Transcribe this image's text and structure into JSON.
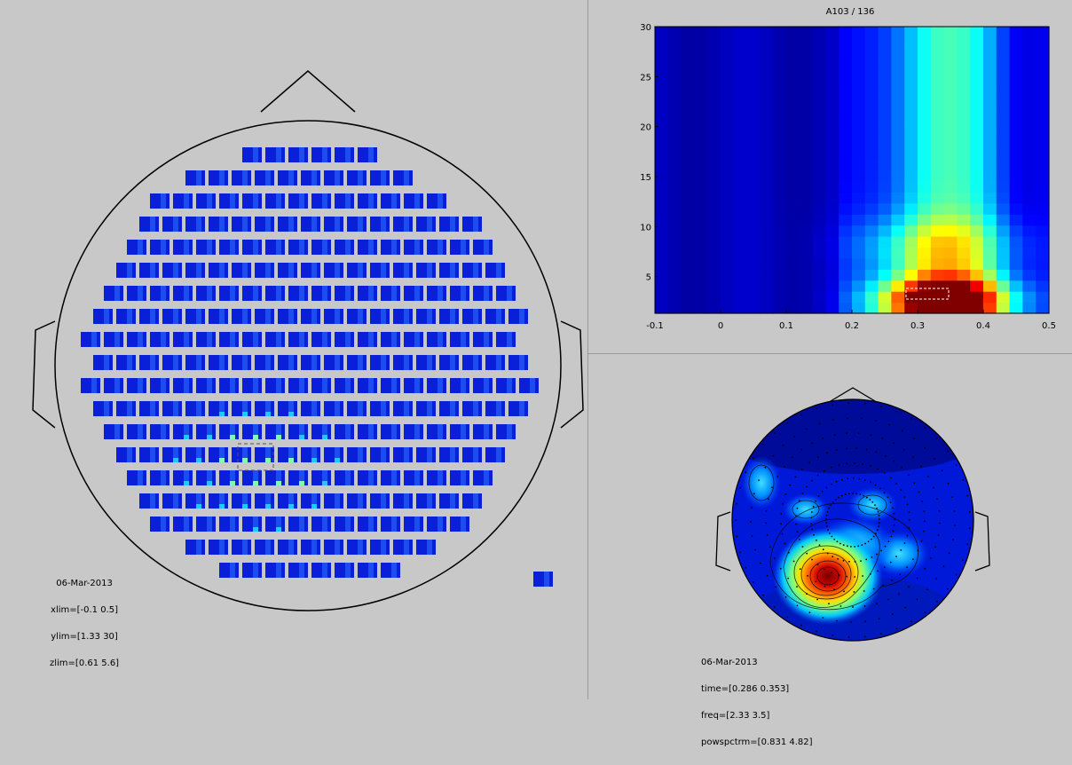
{
  "layout_panels": {
    "left": {
      "info": {
        "date": "06-Mar-2013",
        "xlim": "xlim=[-0.1 0.5]",
        "ylim": "ylim=[1.33 30]",
        "zlim": "zlim=[0.61 5.6]"
      }
    },
    "bottom_right": {
      "info": {
        "date": "06-Mar-2013",
        "time": "time=[0.286 0.353]",
        "freq": "freq=[2.33 3.5]",
        "powspctrm": "powspctrm=[0.831 4.82]"
      }
    }
  },
  "chart_data": [
    {
      "type": "heatmap",
      "title": "A103 / 136",
      "xlabel": "",
      "ylabel": "",
      "xlim": [
        -0.1,
        0.5
      ],
      "ylim": [
        1.33,
        30
      ],
      "x_ticks": [
        "-0.1",
        "0",
        "0.1",
        "0.2",
        "0.3",
        "0.4",
        "0.5"
      ],
      "y_ticks": [
        "5",
        "10",
        "15",
        "20",
        "25",
        "30"
      ],
      "colormap": "jet",
      "selection_box": {
        "time": [
          0.286,
          0.353
        ],
        "freq": [
          2.33,
          3.5
        ]
      }
    },
    {
      "type": "heatmap",
      "title": "",
      "xlabel": "",
      "ylabel": "",
      "peak_value": 4.82,
      "peak_location": "left-posterior",
      "colormap": "jet"
    }
  ],
  "colors": {
    "background": "#c8c8c8",
    "outline": "#000000",
    "low": "#00008f",
    "mid": "#00ffff",
    "high": "#800000"
  }
}
